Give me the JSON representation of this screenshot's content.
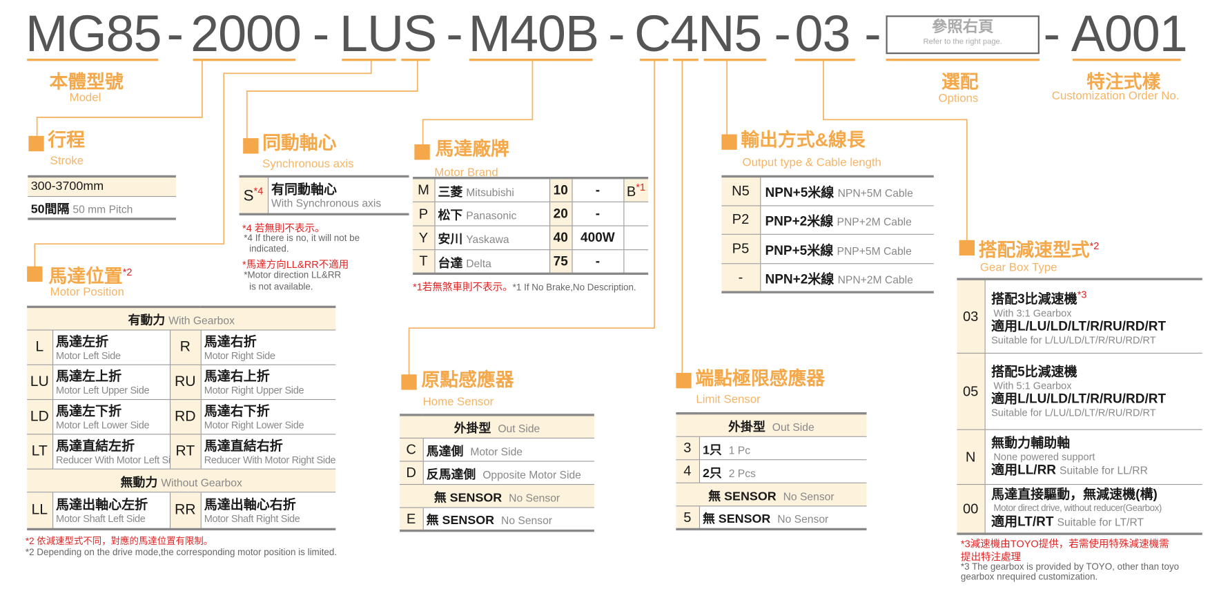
{
  "model_code": {
    "segments": [
      "MG85",
      "2000",
      "LUS",
      "M40B",
      "C4N5",
      "03",
      "A001"
    ],
    "separator": "-",
    "options_box": {
      "zh": "參照右頁",
      "en": "Refer to the right page."
    }
  },
  "labels": {
    "model": {
      "zh": "本體型號",
      "en": "Model"
    },
    "options": {
      "zh": "選配",
      "en": "Options"
    },
    "custom": {
      "zh": "特注式樣",
      "en": "Customization Order No."
    }
  },
  "colors": {
    "accent": "#f5a84a",
    "cream": "#fdf2dc",
    "note": "#e02424",
    "border": "#888888"
  },
  "stroke": {
    "zh": "行程",
    "en": "Stroke",
    "rows": [
      {
        "main": "300-3700mm"
      },
      {
        "main": "50間隔",
        "en": "50 mm Pitch"
      }
    ]
  },
  "sync": {
    "zh": "同動軸心",
    "en": "Synchronous axis",
    "code": "S",
    "code_note": "*4",
    "main": "有同動軸心",
    "sub": "With Synchronous axis",
    "notes": {
      "n1_zh": "*4 若無則不表示。",
      "n1_en1": "*4 If there is no, it will not be",
      "n1_en2": "indicated.",
      "n2_zh": "*馬達方向LL&RR不適用",
      "n2_en1": "*Motor direction LL&RR",
      "n2_en2": "is not available."
    }
  },
  "brand": {
    "zh": "馬達廠牌",
    "en": "Motor Brand",
    "rows": [
      {
        "code": "M",
        "zh": "三菱",
        "en": "Mitsubishi",
        "num": "10",
        "watt": "-",
        "brake": "B",
        "brake_note": "*1"
      },
      {
        "code": "P",
        "zh": "松下",
        "en": "Panasonic",
        "num": "20",
        "watt": "-",
        "brake": ""
      },
      {
        "code": "Y",
        "zh": "安川",
        "en": "Yaskawa",
        "num": "40",
        "watt": "400W",
        "brake": ""
      },
      {
        "code": "T",
        "zh": "台達",
        "en": "Delta",
        "num": "75",
        "watt": "-",
        "brake": ""
      }
    ],
    "note_zh": "*1若無煞車則不表示。",
    "note_en": "*1 If No Brake,No Description."
  },
  "output": {
    "zh": "輸出方式&線長",
    "en": "Output type & Cable length",
    "rows": [
      {
        "code": "N5",
        "zh": "NPN+5米線",
        "en": "NPN+5M Cable"
      },
      {
        "code": "P2",
        "zh": "PNP+2米線",
        "en": "PNP+2M Cable"
      },
      {
        "code": "P5",
        "zh": "PNP+5米線",
        "en": "PNP+5M Cable"
      },
      {
        "code": "-",
        "zh": "NPN+2米線",
        "en": "NPN+2M Cable"
      }
    ]
  },
  "position": {
    "zh": "馬達位置",
    "en": "Motor Position",
    "note_mark": "*2",
    "with_header": {
      "zh": "有動力",
      "en": "With Gearbox"
    },
    "without_header": {
      "zh": "無動力",
      "en": "Without Gearbox"
    },
    "rows": [
      {
        "lc": "L",
        "lzh": "馬達左折",
        "len": "Motor Left Side",
        "rc": "R",
        "rzh": "馬達右折",
        "ren": "Motor Right Side"
      },
      {
        "lc": "LU",
        "lzh": "馬達左上折",
        "len": "Motor Left Upper Side",
        "rc": "RU",
        "rzh": "馬達右上折",
        "ren": "Motor Right Upper Side"
      },
      {
        "lc": "LD",
        "lzh": "馬達左下折",
        "len": "Motor Left Lower Side",
        "rc": "RD",
        "rzh": "馬達右下折",
        "ren": "Motor Right Lower Side"
      },
      {
        "lc": "LT",
        "lzh": "馬達直結左折",
        "len": "Reducer With Motor Left Side",
        "rc": "RT",
        "rzh": "馬達直結右折",
        "ren": "Reducer With Motor Right Side"
      }
    ],
    "no_power_row": {
      "lc": "LL",
      "lzh": "馬達出軸心左折",
      "len": "Motor Shaft Left Side",
      "rc": "RR",
      "rzh": "馬達出軸心右折",
      "ren": "Motor Shaft Right Side"
    },
    "note_zh": "*2 依減速型式不同，對應的馬達位置有限制。",
    "note_en": "*2 Depending on the drive mode,the corresponding motor position is limited."
  },
  "home": {
    "zh": "原點感應器",
    "en": "Home Sensor",
    "header": {
      "zh": "外掛型",
      "en": "Out Side"
    },
    "rows": [
      {
        "code": "C",
        "zh": "馬達側",
        "en": "Motor Side"
      },
      {
        "code": "D",
        "zh": "反馬達側",
        "en": "Opposite Motor Side"
      }
    ],
    "none_header": {
      "zh": "無 SENSOR",
      "en": "No Sensor"
    },
    "none_row": {
      "code": "E",
      "zh": "無 SENSOR",
      "en": "No Sensor"
    }
  },
  "limit": {
    "zh": "端點極限感應器",
    "en": "Limit Sensor",
    "header": {
      "zh": "外掛型",
      "en": "Out Side"
    },
    "rows": [
      {
        "code": "3",
        "zh": "1只",
        "en": "1 Pc"
      },
      {
        "code": "4",
        "zh": "2只",
        "en": "2 Pcs"
      }
    ],
    "none_header": {
      "zh": "無 SENSOR",
      "en": "No Sensor"
    },
    "none_row": {
      "code": "5",
      "zh": "無 SENSOR",
      "en": "No Sensor"
    }
  },
  "gearbox": {
    "zh": "搭配減速型式",
    "en": "Gear Box Type",
    "note_mark": "*2",
    "rows": [
      {
        "code": "03",
        "l1": "搭配3比減速機",
        "l1_note": "*3",
        "l2": "With 3:1 Gearbox",
        "l3": "適用L/LU/LD/LT/R/RU/RD/RT",
        "l4": "Suitable for L/LU/LD/LT/R/RU/RD/RT"
      },
      {
        "code": "05",
        "l1": "搭配5比減速機",
        "l2": "With 5:1 Gearbox",
        "l3": "適用L/LU/LD/LT/R/RU/RD/RT",
        "l4": "Suitable for L/LU/LD/LT/R/RU/RD/RT"
      },
      {
        "code": "N",
        "l1": "無動力輔助軸",
        "l2": "None powered support",
        "l3": "適用LL/RR",
        "l4": "Suitable for LL/RR"
      },
      {
        "code": "00",
        "l1": "馬達直接驅動，無減速機(構)",
        "l2": "Motor direct drive, without reducer(Gearbox)",
        "l3": "適用LT/RT",
        "l4": "Suitable for LT/RT"
      }
    ],
    "note_zh1": "*3減速機由TOYO提供，若需使用特殊減速機需",
    "note_zh2": "提出特注處理",
    "note_en1": "*3 The gearbox is provided by TOYO, other than toyo",
    "note_en2": "gearbox nrequired customization."
  }
}
